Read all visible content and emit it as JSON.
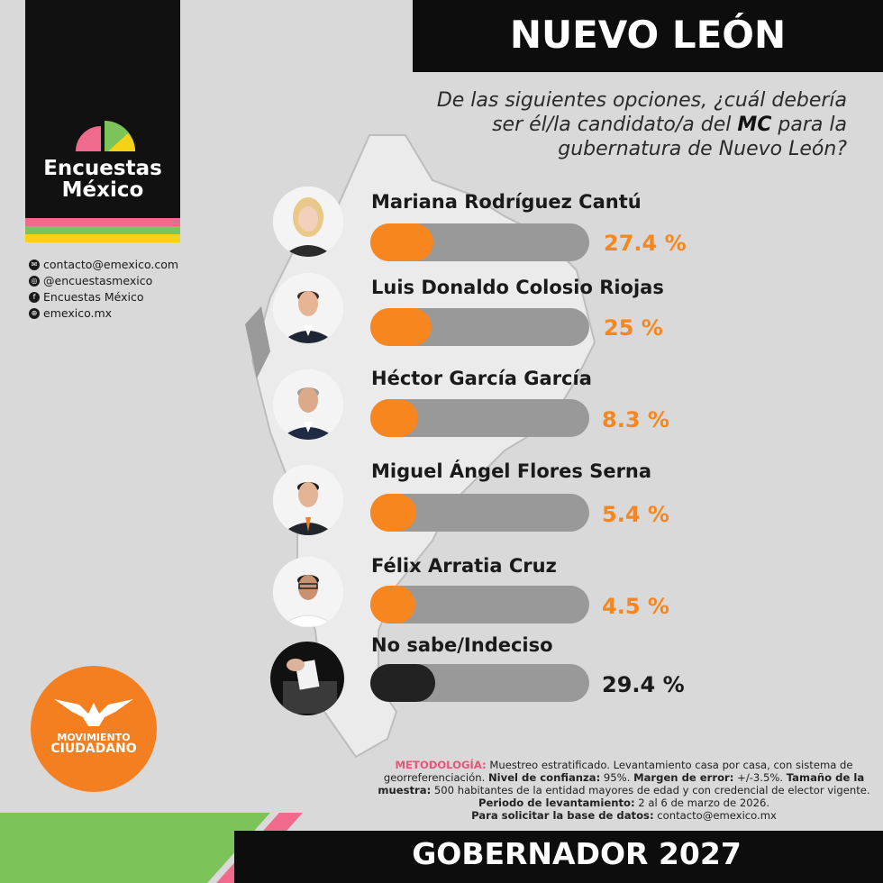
{
  "header": {
    "title": "NUEVO LEÓN",
    "question_pre": "De las siguientes opciones, ¿cuál debería ser él/la candidato/a del ",
    "question_bold": "MC",
    "question_post": " para la gubernatura de Nuevo León?"
  },
  "brand": {
    "line1": "Encuestas",
    "line2": "México",
    "stripe_colors": [
      "#f06a8e",
      "#7cc35a",
      "#f5d213"
    ]
  },
  "contacts": [
    {
      "icon": "mail-icon",
      "text": "contacto@emexico.com"
    },
    {
      "icon": "instagram-icon",
      "text": "@encuestasmexico"
    },
    {
      "icon": "facebook-icon",
      "text": "Encuestas México"
    },
    {
      "icon": "globe-icon",
      "text": "emexico.mx"
    }
  ],
  "chart_data": {
    "type": "bar",
    "categories": [
      "Mariana Rodríguez Cantú",
      "Luis Donaldo Colosio Riojas",
      "Héctor García García",
      "Miguel Ángel Flores Serna",
      "Félix Arratia Cruz",
      "No sabe/Indeciso"
    ],
    "values": [
      27.4,
      25,
      8.3,
      5.4,
      4.5,
      29.4
    ],
    "value_labels": [
      "27.4 %",
      "25 %",
      "8.3 %",
      "5.4 %",
      "4.5 %",
      "29.4 %"
    ],
    "colors": [
      "#f7861f",
      "#f7861f",
      "#f7861f",
      "#f7861f",
      "#f7861f",
      "#222222"
    ],
    "label_colors": [
      "#f7861f",
      "#f7861f",
      "#f7861f",
      "#f7861f",
      "#f7861f",
      "#1a1a1a"
    ],
    "ylim": [
      0,
      100
    ]
  },
  "methodology": {
    "label": "METODOLOGÍA:",
    "t1": " Muestreo estratificado. Levantamiento casa por casa, con sistema de georreferenciación. ",
    "b1": "Nivel de confianza:",
    "t2": " 95%. ",
    "b2": "Margen de error:",
    "t3": " +/-3.5%. ",
    "b3": "Tamaño de la muestra:",
    "t4": " 500 habitantes de la entidad mayores de edad y con credencial de elector vigente.",
    "b4": "Periodo de levantamiento:",
    "t5": " 2 al 6 de marzo de 2026.",
    "b5": "Para solicitar la base de datos:",
    "t6": " contacto@emexico.mx"
  },
  "party_logo": {
    "line1": "MOVIMIENTO",
    "line2": "CIUDADANO"
  },
  "footer": {
    "title": "GOBERNADOR 2027"
  }
}
